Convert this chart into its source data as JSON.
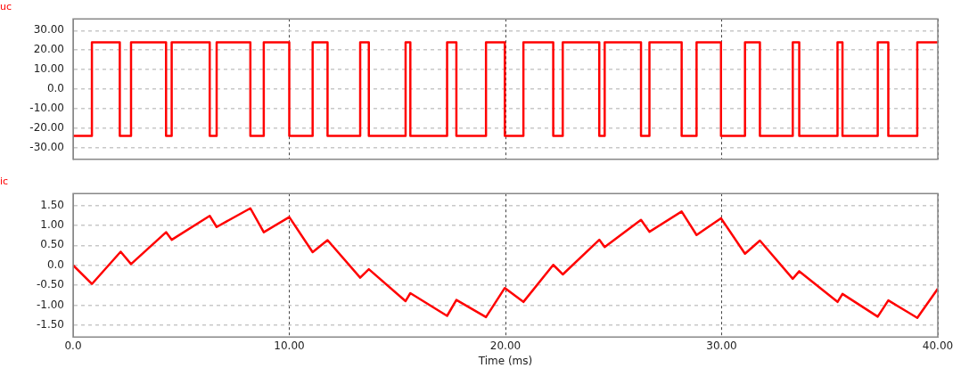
{
  "chart_data": [
    {
      "type": "step",
      "x": [
        0,
        0.87,
        2.16,
        2.68,
        4.3,
        4.56,
        6.32,
        6.64,
        8.2,
        8.82,
        10,
        11.08,
        11.77,
        13.28,
        13.68,
        15.38,
        15.6,
        17.3,
        17.73,
        19.1,
        19.97,
        20.83,
        22.21,
        22.65,
        24.34,
        24.59,
        26.27,
        26.66,
        28.15,
        28.84,
        29.97,
        31.08,
        31.77,
        33.29,
        33.59,
        35.36,
        35.59,
        37.22,
        37.71,
        39.05,
        40
      ],
      "series": [
        {
          "name": "uc",
          "color": "#ff0000",
          "values": [
            -24,
            24,
            -24,
            24,
            -24,
            24,
            -24,
            24,
            -24,
            24,
            -24,
            24,
            -24,
            24,
            -24,
            24,
            -24,
            24,
            -24,
            24,
            -24,
            24,
            -24,
            24,
            -24,
            24,
            -24,
            24,
            -24,
            24,
            -24,
            24,
            -24,
            24,
            -24,
            24,
            -24,
            24,
            -24,
            24,
            24
          ]
        }
      ],
      "xlim": [
        0,
        40
      ],
      "xticks": [
        {
          "value": 0,
          "label": null
        },
        {
          "value": 10,
          "label": null
        },
        {
          "value": 20,
          "label": null
        },
        {
          "value": 30,
          "label": null
        },
        {
          "value": 40,
          "label": null
        }
      ],
      "ylim": [
        -36,
        36
      ],
      "yticks": [
        {
          "value": -30,
          "label": "-30.00"
        },
        {
          "value": -20,
          "label": "-20.00"
        },
        {
          "value": -10,
          "label": "-10.00"
        },
        {
          "value": 0,
          "label": "0.0"
        },
        {
          "value": 10,
          "label": "10.00"
        },
        {
          "value": 20,
          "label": "20.00"
        },
        {
          "value": 30,
          "label": "30.00"
        }
      ],
      "grid": true,
      "marker": "none",
      "tick_labels": "y"
    },
    {
      "type": "line",
      "x": [
        0,
        0.87,
        2.2,
        2.68,
        4.3,
        4.56,
        6.32,
        6.64,
        8.2,
        8.82,
        10,
        11.08,
        11.77,
        13.28,
        13.68,
        15.38,
        15.6,
        17.3,
        17.73,
        19.1,
        19.97,
        20.83,
        22.21,
        22.65,
        24.34,
        24.59,
        26.27,
        26.66,
        28.15,
        28.84,
        29.97,
        31.08,
        31.77,
        33.29,
        33.59,
        35.36,
        35.59,
        37.22,
        37.71,
        39.05,
        40
      ],
      "series": [
        {
          "name": "ic",
          "color": "#ff0000",
          "values": [
            0,
            -0.47,
            0.34,
            0.03,
            0.83,
            0.64,
            1.24,
            0.96,
            1.43,
            0.83,
            1.21,
            0.33,
            0.63,
            -0.31,
            -0.1,
            -0.9,
            -0.7,
            -1.27,
            -0.87,
            -1.3,
            -0.57,
            -0.92,
            0.01,
            -0.23,
            0.64,
            0.46,
            1.14,
            0.84,
            1.35,
            0.76,
            1.18,
            0.29,
            0.62,
            -0.34,
            -0.15,
            -0.92,
            -0.72,
            -1.29,
            -0.88,
            -1.32,
            -0.59
          ]
        }
      ],
      "xlabel": "Time (ms)",
      "xlim": [
        0,
        40
      ],
      "xticks": [
        {
          "value": 0,
          "label": "0.0"
        },
        {
          "value": 10,
          "label": "10.00"
        },
        {
          "value": 20,
          "label": "20.00"
        },
        {
          "value": 30,
          "label": "30.00"
        },
        {
          "value": 40,
          "label": "40.00"
        }
      ],
      "ylim": [
        -1.8,
        1.8
      ],
      "yticks": [
        {
          "value": -1.5,
          "label": "-1.50"
        },
        {
          "value": -1,
          "label": "-1.00"
        },
        {
          "value": -0.5,
          "label": "-0.50"
        },
        {
          "value": 0,
          "label": "0.0"
        },
        {
          "value": 0.5,
          "label": "0.50"
        },
        {
          "value": 1,
          "label": "1.00"
        },
        {
          "value": 1.5,
          "label": "1.50"
        }
      ],
      "grid": true,
      "marker": "none"
    }
  ]
}
